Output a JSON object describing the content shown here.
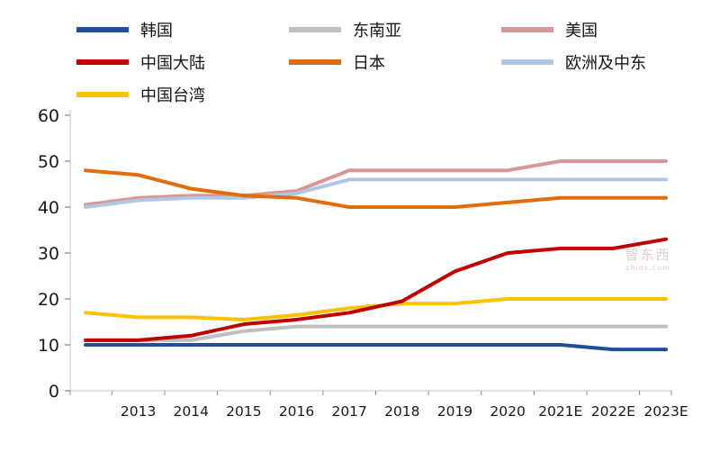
{
  "legend": {
    "items": [
      {
        "label": "韩国",
        "color": "#1D4F9C"
      },
      {
        "label": "东南亚",
        "color": "#BFBFBF"
      },
      {
        "label": "美国",
        "color": "#DA9694"
      },
      {
        "label": "中国大陆",
        "color": "#C00000"
      },
      {
        "label": "日本",
        "color": "#E36C0A"
      },
      {
        "label": "欧洲及中东",
        "color": "#AFC7E4"
      },
      {
        "label": "中国台湾",
        "color": "#FFC000"
      }
    ]
  },
  "watermark": {
    "line1": "智东西",
    "line2": "zhidx.com"
  },
  "chart_data": {
    "type": "line",
    "x": [
      "",
      "2013",
      "2014",
      "2015",
      "2016",
      "2017",
      "2018",
      "2019",
      "2020",
      "2021E",
      "2022E",
      "2023E"
    ],
    "ylim": [
      0,
      60
    ],
    "yticks": [
      0,
      10,
      20,
      30,
      40,
      50,
      60
    ],
    "grid": false,
    "legend_position": "top",
    "series": [
      {
        "id": "usa",
        "name": "美国",
        "color": "#DA9694",
        "values": [
          40.5,
          42,
          42.5,
          42.5,
          43.5,
          48,
          48,
          48,
          48,
          50,
          50,
          50
        ]
      },
      {
        "id": "europe-middle-east",
        "name": "欧洲及中东",
        "color": "#AFC7E4",
        "values": [
          40,
          41.5,
          42,
          42,
          43,
          46,
          46,
          46,
          46,
          46,
          46,
          46
        ]
      },
      {
        "id": "japan",
        "name": "日本",
        "color": "#E36C0A",
        "values": [
          48,
          47,
          44,
          42.5,
          42,
          40,
          40,
          40,
          41,
          42,
          42,
          42
        ]
      },
      {
        "id": "southeast-asia",
        "name": "东南亚",
        "color": "#BFBFBF",
        "values": [
          11,
          11,
          11,
          13,
          14,
          14,
          14,
          14,
          14,
          14,
          14,
          14
        ]
      },
      {
        "id": "taiwan-china",
        "name": "中国台湾",
        "color": "#FFC000",
        "values": [
          17,
          16,
          16,
          15.5,
          16.5,
          18,
          19,
          19,
          20,
          20,
          20,
          20
        ]
      },
      {
        "id": "korea",
        "name": "韩国",
        "color": "#1D4F9C",
        "values": [
          10,
          10,
          10,
          10,
          10,
          10,
          10,
          10,
          10,
          10,
          9,
          9
        ]
      },
      {
        "id": "mainland-china",
        "name": "中国大陆",
        "color": "#C00000",
        "values": [
          11,
          11,
          12,
          14.5,
          15.5,
          17,
          19.5,
          26,
          30,
          31,
          31,
          33
        ]
      }
    ]
  }
}
